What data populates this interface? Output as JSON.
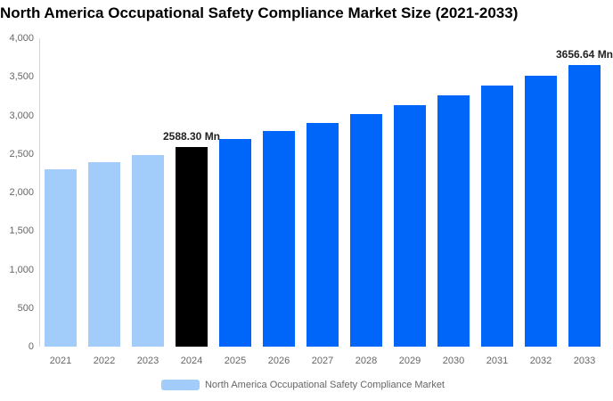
{
  "title": "North America Occupational Safety Compliance Market Size (2021-2033)",
  "legend": {
    "label": "North America Occupational Safety Compliance Market",
    "swatch_color": "#A2CCFA"
  },
  "colors": {
    "historical_bar": "#A2CCFA",
    "base_year_bar": "#000000",
    "forecast_bar": "#0066FA",
    "axis_line": "#D6D6D6",
    "tick_text": "#666666",
    "data_label_text": "#222222",
    "title_text": "#000000"
  },
  "chart_data": {
    "type": "bar",
    "title": "North America Occupational Safety Compliance Market Size (2021-2033)",
    "xlabel": "",
    "ylabel": "",
    "unit": "Mn",
    "categories": [
      "2021",
      "2022",
      "2023",
      "2024",
      "2025",
      "2026",
      "2027",
      "2028",
      "2029",
      "2030",
      "2031",
      "2032",
      "2033"
    ],
    "values": [
      2306,
      2397,
      2491,
      2588.3,
      2690,
      2795,
      2904,
      3018,
      3136,
      3259,
      3386,
      3519,
      3656.64
    ],
    "bar_colors": [
      "#A2CCFA",
      "#A2CCFA",
      "#A2CCFA",
      "#000000",
      "#0066FA",
      "#0066FA",
      "#0066FA",
      "#0066FA",
      "#0066FA",
      "#0066FA",
      "#0066FA",
      "#0066FA",
      "#0066FA"
    ],
    "data_labels": [
      {
        "index": 3,
        "text": "2588.30 Mn"
      },
      {
        "index": 12,
        "text": "3656.64 Mn"
      }
    ],
    "ylim": [
      0,
      4000
    ],
    "ytick_values": [
      0,
      500,
      1000,
      1500,
      2000,
      2500,
      3000,
      3500,
      4000
    ],
    "ytick_labels": [
      "0",
      "500",
      "1,000",
      "1,500",
      "2,000",
      "2,500",
      "3,000",
      "3,500",
      "4,000"
    ],
    "grid": false,
    "legend_position": "bottom",
    "legend_entries": [
      "North America Occupational Safety Compliance Market"
    ]
  }
}
